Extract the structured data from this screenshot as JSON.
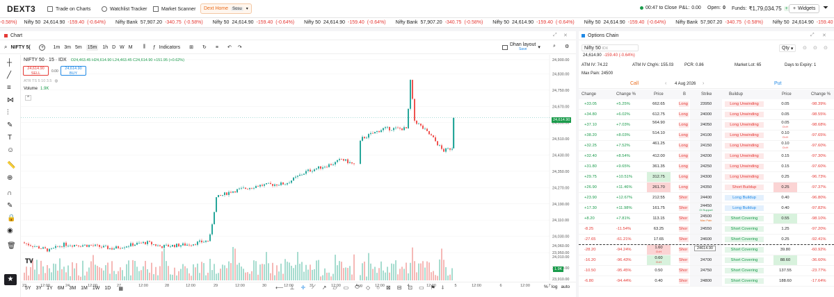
{
  "nav": {
    "logo": "DEXT3",
    "items": [
      "Trade on Charts",
      "Watchlist Tracker",
      "Market Scanner",
      "Dext Home"
    ],
    "sosu": "Sosu",
    "time": "00:47 to Close",
    "pl_label": "P&L:",
    "pl": "0.00",
    "open_label": "Open:",
    "open": "0",
    "funds_label": "Funds:",
    "funds": "₹1,79,034.75",
    "widgets": "Widgets"
  },
  "ticker": [
    {
      "text": "-0.58%)",
      "cls": "red"
    },
    {
      "name": "Nifty 50",
      "price": "24,614.90",
      "chg": "-159.40",
      "pct": "(-0.64%)"
    },
    {
      "name": "Nifty Bank",
      "price": "57,907.20",
      "chg": "-340.75",
      "pct": "(-0.58%)"
    },
    {
      "name": "Nifty 50",
      "price": "24,614.90",
      "chg": "-159.40",
      "pct": "(-0.64%)"
    },
    {
      "name": "Nifty 50",
      "price": "24,614.90",
      "chg": "-159.40",
      "pct": "(-0.64%)"
    },
    {
      "name": "Nifty Bank",
      "price": "57,907.20",
      "chg": "-340.75",
      "pct": "(-0.58%)"
    },
    {
      "name": "Nifty 50",
      "price": "24,614.90",
      "chg": "-159.40",
      "pct": "(-0.64%)"
    },
    {
      "name": "Nifty 50",
      "price": "24,614.90",
      "chg": "-159.40",
      "pct": "(-0.64%)"
    },
    {
      "name": "Nifty Bank",
      "price": "57,907.20",
      "chg": "-340.75",
      "pct": "(-0.58%)"
    },
    {
      "name": "Nifty 50",
      "price": "24,614.90",
      "chg": "-159.40",
      "pct": "(-0.64%)"
    },
    {
      "name": "Nifty 50",
      "price": "24,614.90",
      "chg": "-159.40",
      "pct": "(-0.64%)"
    },
    {
      "name": "Nifty Bank",
      "price": "57,907.20",
      "chg": "-340.75",
      "pct": "(-0.58%)"
    },
    {
      "name": "Nifty 50",
      "price": "24,614.90",
      "chg": "-159.40",
      "pct": "(-0.6"
    }
  ],
  "chart": {
    "panel_title": "Chart",
    "symbol": "NIFTY 5(",
    "timeframes": [
      "1m",
      "3m",
      "5m",
      "15m",
      "1h",
      "D",
      "W",
      "M"
    ],
    "active_tf": "15m",
    "indicators": "Indicators",
    "layout": "Dhan layout",
    "layout_sub": "Save",
    "title": "NIFTY 50 · 15 · IDX",
    "ohlc": "O24,463.45 H24,614.90 L24,463.45 C24,614.90 +151.95 (+0.62%)",
    "sell_price": "24,614.90",
    "sell": "SELL",
    "spread": "0.00",
    "buy_price": "24,614.90",
    "buy": "BUY",
    "atr": "ATR TS 5 10 3.5",
    "volume": "Volume",
    "volume_val": "1.9K",
    "price_tag": "24,614.90",
    "vol_tag": "1.9K",
    "ranges": [
      "5Y",
      "3Y",
      "1Y",
      "6M",
      "3M",
      "1M",
      "1W",
      "1D"
    ],
    "bottom_right": [
      "%",
      "log",
      "auto"
    ]
  },
  "chart_data": {
    "type": "candlestick",
    "y_ticks": [
      24830,
      24750,
      24670,
      24590,
      24510,
      24430,
      24350,
      24270,
      24190,
      24110,
      24030,
      23950
    ],
    "y_labels": [
      "24,900.00",
      "24,830.00",
      "24,750.00",
      "24,670.00",
      "24,590.00",
      "24,510.00",
      "24,430.00",
      "24,350.00",
      "24,270.00",
      "24,190.00",
      "24,110.00",
      "24,030.00",
      "23,950.00",
      "24,060.00",
      "24,010.00",
      "23,960.00",
      "23,910.00"
    ],
    "x_labels": [
      "23",
      "12:00",
      "24",
      "12:00",
      "27",
      "12:00",
      "28",
      "12:00",
      "29",
      "12:00",
      "30",
      "12:00",
      "31",
      "12:00",
      "Aug",
      "12:00",
      "4",
      "12:00",
      "5",
      "12:00",
      "6",
      "12:00",
      "7"
    ],
    "ylim": [
      23910,
      24910
    ]
  },
  "oc": {
    "panel_title": "Options Chain",
    "symbol": "Nifty 50",
    "exch": "IDX",
    "spot": "24,614.90",
    "spot_chg": "-159.40 (-0.64%)",
    "qty": "Qty",
    "atm_iv_label": "ATM IV:",
    "atm_iv": "74.22",
    "atm_chg_label": "ATM IV Chg%:",
    "atm_chg": "155.03",
    "pcr_label": "PCR:",
    "pcr": "0.86",
    "lot_label": "Market Lot:",
    "lot": "65",
    "expiry_label": "Days to Expiry:",
    "expiry": "1",
    "maxpain_label": "Max Pain:",
    "maxpain": "24500",
    "call": "Call",
    "put": "Put",
    "date": "4 Aug 2026",
    "headers": [
      "Change",
      "Change %",
      "Price",
      "B",
      "Strike",
      "Buildup",
      "Price",
      "Change %"
    ],
    "spot_marker": "24614.90",
    "rows": [
      {
        "c": "+33.05",
        "cp": "+5.25%",
        "p": "662.65",
        "b": "Long",
        "s": "23950",
        "bu": "Long Unwinding",
        "pp": "0.05",
        "pcp": "-98.39%"
      },
      {
        "c": "+34.80",
        "cp": "+6.02%",
        "p": "612.75",
        "b": "Long",
        "s": "24000",
        "bu": "Long Unwinding",
        "pp": "0.05",
        "pcp": "-98.55%"
      },
      {
        "c": "+37.10",
        "cp": "+7.03%",
        "p": "564.90",
        "b": "Long",
        "s": "24050",
        "bu": "Long Unwinding",
        "pp": "0.05",
        "pcp": "-98.68%",
        "sub": "O=H"
      },
      {
        "c": "+38.20",
        "cp": "+8.03%",
        "p": "514.10",
        "b": "Long",
        "s": "24100",
        "bu": "Long Unwinding",
        "pp": "0.10",
        "pcp": "-97.65%",
        "sub": "O=H"
      },
      {
        "c": "+32.25",
        "cp": "+7.52%",
        "p": "461.25",
        "b": "Long",
        "s": "24150",
        "bu": "Long Unwinding",
        "pp": "0.10",
        "pcp": "-97.60%",
        "sub": "O=H"
      },
      {
        "c": "+32.40",
        "cp": "+8.54%",
        "p": "412.00",
        "b": "Long",
        "s": "24200",
        "bu": "Long Unwinding",
        "pp": "0.15",
        "pcp": "-97.30%"
      },
      {
        "c": "+31.80",
        "cp": "+9.65%",
        "p": "361.35",
        "b": "Long",
        "s": "24250",
        "bu": "Long Unwinding",
        "pp": "0.15",
        "pcp": "-97.60%"
      },
      {
        "c": "+29.75",
        "cp": "+10.51%",
        "p": "312.75",
        "b": "Long",
        "s": "24300",
        "bu": "Long Unwinding",
        "pp": "0.25",
        "pcp": "-96.73%",
        "hc": 1
      },
      {
        "c": "+26.90",
        "cp": "+11.46%",
        "p": "261.70",
        "b": "Long",
        "s": "24350",
        "bu": "Short Buildup",
        "pp": "0.25",
        "pcp": "-97.37%",
        "hc": 2,
        "hp": 2
      },
      {
        "c": "+23.90",
        "cp": "+12.67%",
        "p": "212.55",
        "b": "Shor",
        "s": "24400",
        "bu": "Long Buildup",
        "pp": "0.40",
        "pcp": "-96.80%"
      },
      {
        "c": "+17.30",
        "cp": "+11.98%",
        "p": "161.75",
        "b": "Shor",
        "s": "24450",
        "bu": "Long Buildup",
        "pp": "0.40",
        "pcp": "-97.82%",
        "tag": "OI Support"
      },
      {
        "c": "+8.20",
        "cp": "+7.81%",
        "p": "113.15",
        "b": "Shor",
        "s": "24500",
        "bu": "Short Covering",
        "pp": "0.55",
        "pcp": "-98.10%",
        "tag": "Max Pain",
        "hp": 1
      },
      {
        "c": "-8.25",
        "cp": "-11.54%",
        "p": "63.25",
        "b": "Shor",
        "s": "24550",
        "bu": "Short Covering",
        "pp": "1.25",
        "pcp": "-97.20%"
      },
      {
        "c": "-27.65",
        "cp": "-61.21%",
        "p": "17.65",
        "b": "Shor",
        "s": "24600",
        "bu": "Short Covering",
        "pp": "0.25",
        "pcp": "-92.41%"
      },
      {
        "c": "-28.20",
        "cp": "-94.24%",
        "p": "1.60",
        "b": "Shor",
        "s": "24650",
        "bu": "Short Covering",
        "pp": "39.80",
        "pcp": "-60.92%",
        "sub": "O=H",
        "hc": 2
      },
      {
        "c": "-16.20",
        "cp": "-96.43%",
        "p": "0.60",
        "b": "Shor",
        "s": "24700",
        "bu": "Short Covering",
        "pp": "88.60",
        "pcp": "-36.60%",
        "sub": "O=H",
        "hc": 1,
        "hp": 1
      },
      {
        "c": "-10.50",
        "cp": "-95.45%",
        "p": "0.50",
        "b": "Shor",
        "s": "24750",
        "bu": "Short Covering",
        "pp": "137.55",
        "pcp": "-23.77%"
      },
      {
        "c": "-6.80",
        "cp": "-94.44%",
        "p": "0.40",
        "b": "Shor",
        "s": "24800",
        "bu": "Short Covering",
        "pp": "188.60",
        "pcp": "-17.64%"
      }
    ]
  }
}
